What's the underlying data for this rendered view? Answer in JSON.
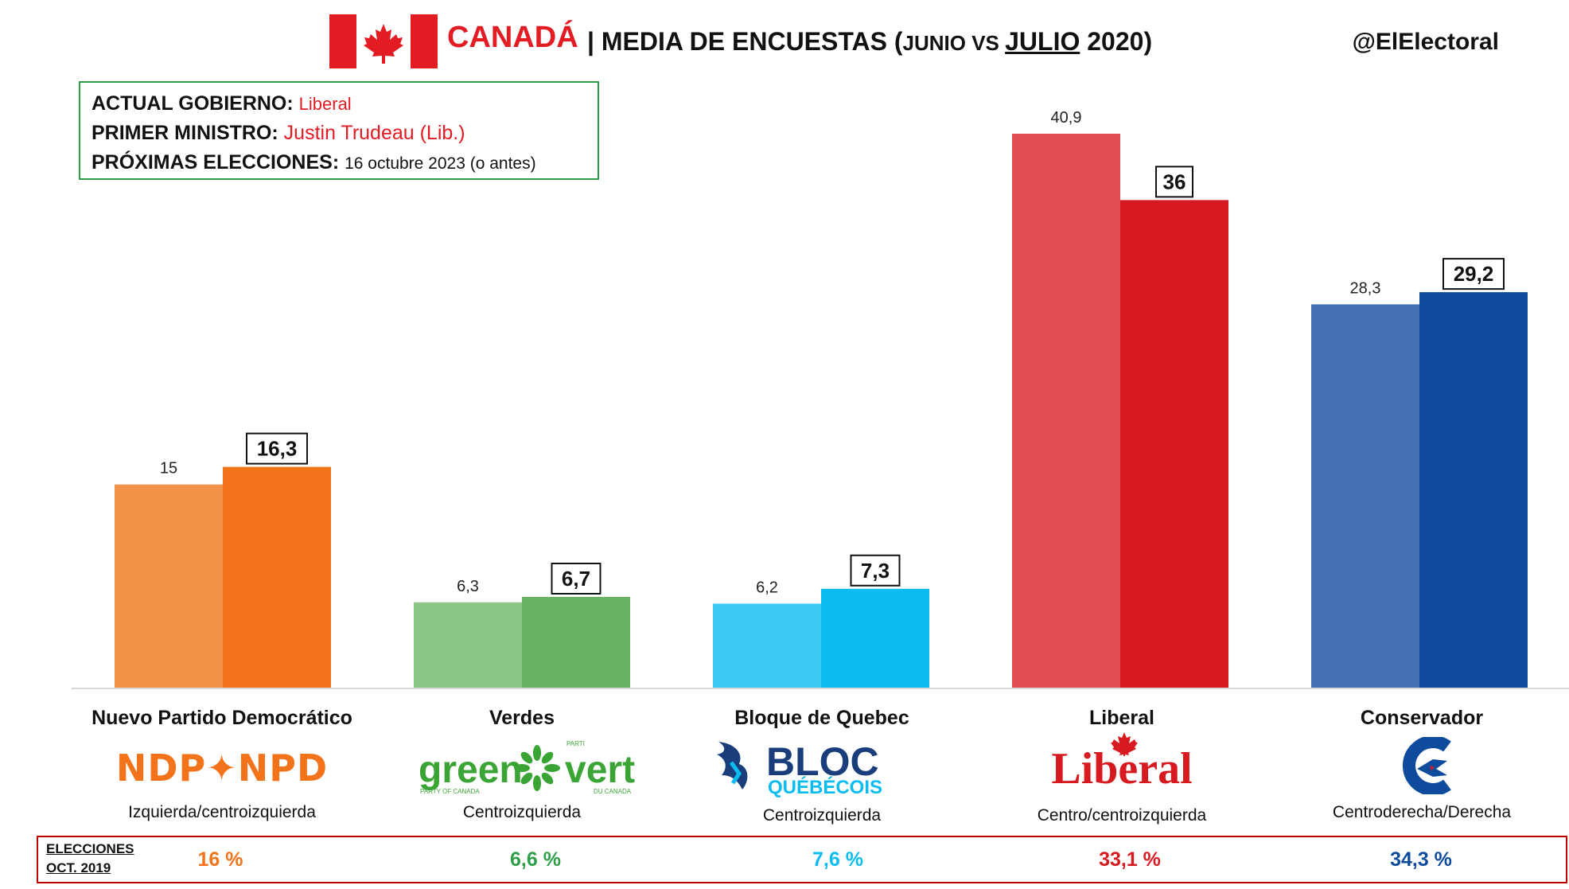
{
  "header": {
    "country": "CANADÁ",
    "separator": "|",
    "title_main": "MEDIA DE ENCUESTAS (",
    "title_junio": "JUNIO VS ",
    "title_julio": "JULIO",
    "title_year": " 2020)",
    "handle": "@ElElectoral"
  },
  "info": {
    "gobierno_label": "ACTUAL GOBIERNO:",
    "gobierno_value": "Liberal",
    "ministro_label": "PRIMER MINISTRO:",
    "ministro_value": "Justin Trudeau (Lib.)",
    "elecciones_label": "PRÓXIMAS ELECCIONES:",
    "elecciones_value": "16 octubre 2023 (o antes)"
  },
  "chart_data": {
    "type": "bar",
    "categories": [
      "Nuevo Partido Democrático",
      "Verdes",
      "Bloque de Quebec",
      "Liberal",
      "Conservador"
    ],
    "series": [
      {
        "values": [
          15,
          6.3,
          6.2,
          40.9,
          28.3
        ],
        "labels": [
          "15",
          "6,3",
          "6,2",
          "40,9",
          "28,3"
        ]
      },
      {
        "values": [
          16.3,
          6.7,
          7.3,
          36,
          29.2
        ],
        "labels": [
          "16,3",
          "6,7",
          "7,3",
          "36",
          "29,2"
        ]
      }
    ],
    "colors_junio": [
      "#f59249",
      "#8ac686",
      "#3ccaf3",
      "#e14b51",
      "#4371b4"
    ],
    "colors_julio": [
      "#f27319",
      "#68b466",
      "#0bbcf1",
      "#d71a20",
      "#0e4b9d"
    ],
    "ylim": [
      0,
      40.9
    ]
  },
  "parties": [
    {
      "name": "Nuevo Partido Democrático",
      "ideology": "Izquierda/centroizquierda",
      "logo": "NDP✦NPD",
      "color": "#f27319"
    },
    {
      "name": "Verdes",
      "ideology": "Centroizquierda",
      "logo_a": "green",
      "logo_b": "vert",
      "logo_sub_a": "PARTY OF CANADA",
      "logo_sub_b": "DU CANADA",
      "logo_top_b": "PARTI",
      "color": "#3aa435"
    },
    {
      "name": "Bloque de Quebec",
      "ideology": "Centroizquierda",
      "logo_a": "BLOC",
      "logo_b": "QUÉBÉCOIS",
      "color": "#1a3d7c"
    },
    {
      "name": "Liberal",
      "ideology": "Centro/centroizquierda",
      "logo": "Liberal",
      "color": "#d71a20"
    },
    {
      "name": "Conservador",
      "ideology": "Centroderecha/Derecha",
      "color": "#0e4b9d"
    }
  ],
  "elections": {
    "label_line1": "ELECCIONES",
    "label_line2": "OCT. 2019",
    "values": [
      "16 %",
      "6,6 %",
      "7,6 %",
      "33,1 %",
      "34,3 %"
    ],
    "colors": [
      "#f27319",
      "#2e9e48",
      "#0bbcf1",
      "#d71a20",
      "#0e4b9d"
    ]
  }
}
